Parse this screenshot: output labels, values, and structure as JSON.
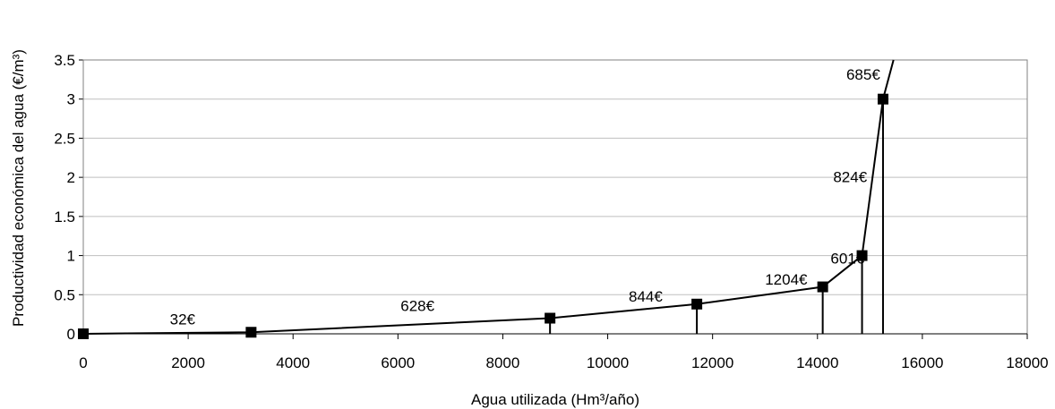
{
  "chart_data": {
    "type": "line",
    "title": "",
    "xlabel": "Agua utilizada (Hm³/año)",
    "ylabel": "Productividad económica del agua (€/m³)",
    "xlim": [
      0,
      18000
    ],
    "ylim": [
      0,
      3.5
    ],
    "x_ticks": [
      "0",
      "2000",
      "4000",
      "6000",
      "8000",
      "10000",
      "12000",
      "14000",
      "16000",
      "18000"
    ],
    "y_ticks": [
      "0",
      "0.5",
      "1",
      "1.5",
      "2",
      "2.5",
      "3",
      "3.5"
    ],
    "grid": "horizontal",
    "legend": "none",
    "series": [
      {
        "points": [
          {
            "x": 0,
            "y": 0
          },
          {
            "x": 3200,
            "y": 0.02
          },
          {
            "x": 8900,
            "y": 0.2
          },
          {
            "x": 11700,
            "y": 0.38
          },
          {
            "x": 14100,
            "y": 0.6
          },
          {
            "x": 14850,
            "y": 1.0
          },
          {
            "x": 15250,
            "y": 3.0
          }
        ],
        "end_x": 15450,
        "end_y": 3.5
      }
    ],
    "vertical_drop_lines_at_x": [
      8900,
      11700,
      14100,
      14850,
      15250
    ],
    "annotations": [
      {
        "text": "32€",
        "x": 1650,
        "y": 0.12
      },
      {
        "text": "628€",
        "x": 6050,
        "y": 0.29
      },
      {
        "text": "844€",
        "x": 10400,
        "y": 0.41
      },
      {
        "text": "1204€",
        "x": 13000,
        "y": 0.63
      },
      {
        "text": "601€",
        "x": 14250,
        "y": 0.9
      },
      {
        "text": "824€",
        "x": 14300,
        "y": 1.94
      },
      {
        "text": "685€",
        "x": 14550,
        "y": 3.25
      }
    ],
    "colors": {
      "line": "#000000",
      "grid": "#bfbfbf",
      "frame": "#808080"
    }
  }
}
